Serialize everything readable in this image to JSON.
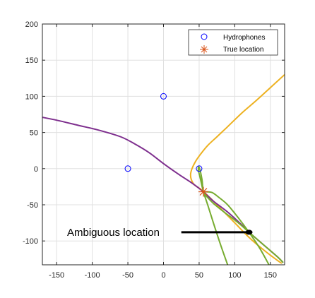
{
  "chart_data": {
    "type": "line",
    "xlim": [
      -170,
      170
    ],
    "ylim": [
      -133,
      200
    ],
    "x_ticks": [
      -150,
      -100,
      -50,
      0,
      50,
      100,
      150
    ],
    "y_ticks": [
      200,
      150,
      100,
      50,
      0,
      -50,
      -100
    ],
    "grid": true,
    "legend_position": "top-right",
    "colors": {
      "hydrophone": "#0000ff",
      "true_location": "#d95319",
      "yellow_curve": "#edb120",
      "purple_curve": "#7e2f8e",
      "green_curve": "#77ac30",
      "annotation": "#000000",
      "grid": "#e0e0e0",
      "axes": "#262626"
    },
    "legend": [
      {
        "label": "Hydrophones",
        "marker": "circle"
      },
      {
        "label": "True location",
        "marker": "asterisk"
      }
    ],
    "hydrophones": [
      {
        "x": -50,
        "y": 0
      },
      {
        "x": 0,
        "y": 100
      },
      {
        "x": 50,
        "y": 0
      }
    ],
    "true_location": {
      "x": 56,
      "y": -32
    },
    "ambiguous_location": {
      "x": 120,
      "y": -88
    },
    "annotation": {
      "text": "Ambiguous location",
      "arrow_from": {
        "x": 25,
        "y": -88
      },
      "arrow_to": {
        "x": 120,
        "y": -88
      }
    },
    "series": [
      {
        "color_key": "yellow_curve",
        "x": [
          170,
          150,
          130,
          110,
          90,
          75,
          62,
          52,
          45,
          40,
          38,
          39,
          43,
          50,
          56,
          65,
          80,
          100,
          120,
          140,
          160,
          166
        ],
        "y": [
          130,
          112,
          94,
          77,
          58,
          44,
          32,
          20,
          10,
          0,
          -8,
          -15,
          -22,
          -27,
          -32,
          -40,
          -55,
          -75,
          -95,
          -112,
          -127,
          -131
        ]
      },
      {
        "color_key": "purple_curve",
        "x": [
          -170,
          -150,
          -120,
          -90,
          -60,
          -40,
          -20,
          0,
          20,
          40,
          56,
          70,
          90,
          110,
          120,
          140,
          160,
          168
        ],
        "y": [
          71,
          67,
          60,
          53,
          44,
          34,
          22,
          7,
          -7,
          -20,
          -32,
          -45,
          -60,
          -78,
          -88,
          -105,
          -122,
          -130
        ]
      },
      {
        "color_key": "green_curve",
        "x": [
          90,
          80,
          70,
          62,
          56,
          52,
          49,
          50,
          54,
          56,
          62,
          70,
          85,
          105,
          120,
          140,
          160,
          168
        ],
        "y": [
          -133,
          -105,
          -75,
          -50,
          -32,
          -15,
          -2,
          2,
          -15,
          -32,
          -40,
          -48,
          -60,
          -75,
          -88,
          -105,
          -122,
          -130
        ]
      },
      {
        "color_key": "green_curve",
        "x": [
          148,
          135,
          120,
          105,
          90,
          78,
          68,
          58,
          56
        ],
        "y": [
          -133,
          -110,
          -88,
          -68,
          -50,
          -40,
          -33,
          -32,
          -32
        ]
      }
    ]
  }
}
